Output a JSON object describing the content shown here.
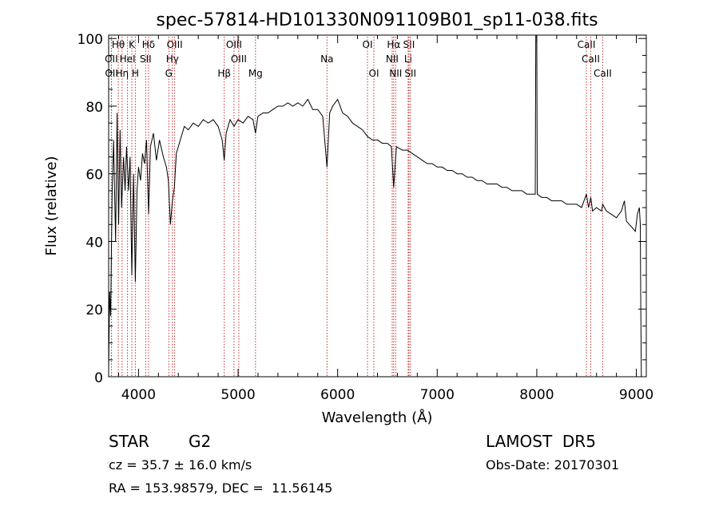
{
  "chart_data": {
    "type": "line",
    "title": "spec-57814-HD101330N091109B01_sp11-038.fits",
    "xlabel": "Wavelength (Å)",
    "ylabel": "Flux (relative)",
    "xlim": [
      3700,
      9100
    ],
    "ylim": [
      0,
      101
    ],
    "xticks": [
      4000,
      5000,
      6000,
      7000,
      8000,
      9000
    ],
    "yticks": [
      0,
      20,
      40,
      60,
      80,
      100
    ],
    "grid": false,
    "series": [
      {
        "points": [
          [
            3700,
            2
          ],
          [
            3710,
            25
          ],
          [
            3720,
            18
          ],
          [
            3735,
            55
          ],
          [
            3750,
            70
          ],
          [
            3770,
            40
          ],
          [
            3785,
            78
          ],
          [
            3800,
            45
          ],
          [
            3815,
            73
          ],
          [
            3830,
            50
          ],
          [
            3850,
            65
          ],
          [
            3865,
            55
          ],
          [
            3880,
            68
          ],
          [
            3900,
            55
          ],
          [
            3915,
            65
          ],
          [
            3933,
            30
          ],
          [
            3950,
            60
          ],
          [
            3968,
            28
          ],
          [
            3985,
            55
          ],
          [
            4000,
            62
          ],
          [
            4020,
            58
          ],
          [
            4040,
            66
          ],
          [
            4060,
            63
          ],
          [
            4080,
            70
          ],
          [
            4101,
            48
          ],
          [
            4120,
            68
          ],
          [
            4150,
            72
          ],
          [
            4180,
            64
          ],
          [
            4210,
            70
          ],
          [
            4250,
            65
          ],
          [
            4280,
            62
          ],
          [
            4300,
            58
          ],
          [
            4320,
            45
          ],
          [
            4340,
            52
          ],
          [
            4360,
            56
          ],
          [
            4380,
            66
          ],
          [
            4420,
            70
          ],
          [
            4460,
            74
          ],
          [
            4500,
            73
          ],
          [
            4550,
            75
          ],
          [
            4600,
            74
          ],
          [
            4650,
            76
          ],
          [
            4700,
            75
          ],
          [
            4750,
            76
          ],
          [
            4800,
            74
          ],
          [
            4840,
            70
          ],
          [
            4861,
            64
          ],
          [
            4880,
            72
          ],
          [
            4920,
            76
          ],
          [
            4960,
            74
          ],
          [
            5000,
            76
          ],
          [
            5050,
            75
          ],
          [
            5100,
            77
          ],
          [
            5150,
            76
          ],
          [
            5175,
            72
          ],
          [
            5200,
            77
          ],
          [
            5250,
            78
          ],
          [
            5300,
            78
          ],
          [
            5350,
            79
          ],
          [
            5400,
            80
          ],
          [
            5450,
            80
          ],
          [
            5500,
            81
          ],
          [
            5550,
            80
          ],
          [
            5600,
            81
          ],
          [
            5650,
            80
          ],
          [
            5700,
            82
          ],
          [
            5750,
            79
          ],
          [
            5800,
            79
          ],
          [
            5850,
            77
          ],
          [
            5893,
            62
          ],
          [
            5920,
            78
          ],
          [
            5950,
            80
          ],
          [
            6000,
            82
          ],
          [
            6050,
            78
          ],
          [
            6100,
            77
          ],
          [
            6150,
            75
          ],
          [
            6200,
            74
          ],
          [
            6250,
            73
          ],
          [
            6300,
            71
          ],
          [
            6350,
            70
          ],
          [
            6400,
            70
          ],
          [
            6450,
            69
          ],
          [
            6500,
            69
          ],
          [
            6540,
            68
          ],
          [
            6563,
            56
          ],
          [
            6590,
            68
          ],
          [
            6650,
            67
          ],
          [
            6700,
            67
          ],
          [
            6750,
            66
          ],
          [
            6800,
            65
          ],
          [
            6850,
            64
          ],
          [
            6900,
            63
          ],
          [
            6950,
            63
          ],
          [
            7000,
            62
          ],
          [
            7050,
            62
          ],
          [
            7100,
            61
          ],
          [
            7150,
            61
          ],
          [
            7200,
            60
          ],
          [
            7250,
            60
          ],
          [
            7300,
            59
          ],
          [
            7350,
            59
          ],
          [
            7400,
            58
          ],
          [
            7450,
            58
          ],
          [
            7500,
            57
          ],
          [
            7550,
            57
          ],
          [
            7600,
            57
          ],
          [
            7650,
            56
          ],
          [
            7700,
            56
          ],
          [
            7750,
            55
          ],
          [
            7800,
            55
          ],
          [
            7850,
            55
          ],
          [
            7900,
            54
          ],
          [
            7950,
            54
          ],
          [
            7985,
            54
          ],
          [
            7990,
            101
          ],
          [
            8000,
            101
          ],
          [
            8005,
            54
          ],
          [
            8050,
            53
          ],
          [
            8100,
            53
          ],
          [
            8150,
            52
          ],
          [
            8200,
            52
          ],
          [
            8250,
            52
          ],
          [
            8300,
            51
          ],
          [
            8350,
            51
          ],
          [
            8400,
            51
          ],
          [
            8450,
            50
          ],
          [
            8498,
            54
          ],
          [
            8520,
            50
          ],
          [
            8542,
            53
          ],
          [
            8560,
            49
          ],
          [
            8600,
            50
          ],
          [
            8650,
            49
          ],
          [
            8662,
            51
          ],
          [
            8700,
            49
          ],
          [
            8750,
            48
          ],
          [
            8800,
            47
          ],
          [
            8850,
            49
          ],
          [
            8880,
            52
          ],
          [
            8900,
            46
          ],
          [
            8930,
            45
          ],
          [
            8960,
            44
          ],
          [
            8990,
            43
          ],
          [
            9010,
            48
          ],
          [
            9030,
            50
          ],
          [
            9040,
            45
          ],
          [
            9045,
            20
          ],
          [
            9050,
            0
          ]
        ]
      }
    ],
    "lines": [
      {
        "label": "Hθ",
        "x": 3797,
        "row": 0
      },
      {
        "label": "K",
        "x": 3933,
        "row": 0
      },
      {
        "label": "Hδ",
        "x": 4101,
        "row": 0
      },
      {
        "label": "OIII",
        "x": 4363,
        "row": 0
      },
      {
        "label": "OIII",
        "x": 4959,
        "row": 0
      },
      {
        "label": "OI",
        "x": 6300,
        "row": 0
      },
      {
        "label": "Hα",
        "x": 6563,
        "row": 0
      },
      {
        "label": "SII",
        "x": 6716,
        "row": 0
      },
      {
        "label": "CaII",
        "x": 8498,
        "row": 0
      },
      {
        "label": "OII",
        "x": 3727,
        "row": 1
      },
      {
        "label": "HeI",
        "x": 3889,
        "row": 1
      },
      {
        "label": "SII",
        "x": 4072,
        "row": 1
      },
      {
        "label": "Hγ",
        "x": 4340,
        "row": 1
      },
      {
        "label": "OIII",
        "x": 5007,
        "row": 1
      },
      {
        "label": "Na",
        "x": 5893,
        "row": 1
      },
      {
        "label": "NII",
        "x": 6548,
        "row": 1
      },
      {
        "label": "Li",
        "x": 6708,
        "row": 1
      },
      {
        "label": "CaII",
        "x": 8542,
        "row": 1
      },
      {
        "label": "OII",
        "x": 3729,
        "row": 2
      },
      {
        "label": "Hη",
        "x": 3835,
        "row": 2
      },
      {
        "label": "H",
        "x": 3968,
        "row": 2
      },
      {
        "label": "G",
        "x": 4304,
        "row": 2
      },
      {
        "label": "Hβ",
        "x": 4861,
        "row": 2
      },
      {
        "label": "Mg",
        "x": 5175,
        "row": 2
      },
      {
        "label": "OI",
        "x": 6364,
        "row": 2
      },
      {
        "label": "NII",
        "x": 6583,
        "row": 2
      },
      {
        "label": "SII",
        "x": 6731,
        "row": 2
      },
      {
        "label": "CaII",
        "x": 8662,
        "row": 2
      }
    ]
  },
  "info": {
    "object_class": "STAR",
    "subclass": "G2",
    "survey": "LAMOST  DR5",
    "cz": "cz = 35.7 ± 16.0 km/s",
    "obs_date": "Obs-Date: 20170301",
    "coords": "RA = 153.98579, DEC =  11.56145"
  }
}
